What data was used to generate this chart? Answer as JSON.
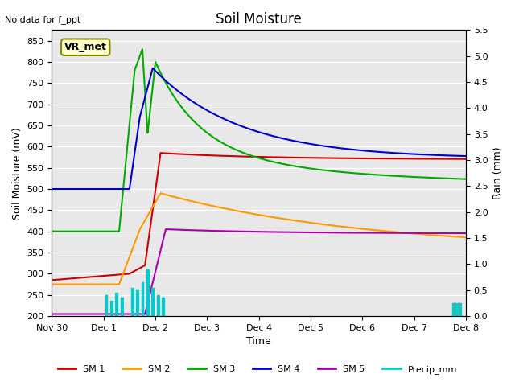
{
  "title": "Soil Moisture",
  "xlabel": "Time",
  "ylabel_left": "Soil Moisture (mV)",
  "ylabel_right": "Rain (mm)",
  "annotation": "No data for f_ppt",
  "label_box": "VR_met",
  "ylim_left": [
    200,
    875
  ],
  "ylim_right": [
    0.0,
    5.5
  ],
  "yticks_left": [
    200,
    250,
    300,
    350,
    400,
    450,
    500,
    550,
    600,
    650,
    700,
    750,
    800,
    850
  ],
  "yticks_right": [
    0.0,
    0.5,
    1.0,
    1.5,
    2.0,
    2.5,
    3.0,
    3.5,
    4.0,
    4.5,
    5.0,
    5.5
  ],
  "xtick_labels": [
    "Nov 30",
    "Dec 1",
    "Dec 2",
    "Dec 3",
    "Dec 4",
    "Dec 5",
    "Dec 6",
    "Dec 7",
    "Dec 8"
  ],
  "bg_color": "#e8e8e8",
  "fig_color": "#ffffff",
  "colors": {
    "SM1": "#cc0000",
    "SM2": "#ff9900",
    "SM3": "#00aa00",
    "SM4": "#0000cc",
    "SM5": "#aa00aa",
    "Precip": "#00cccc"
  },
  "legend_labels": [
    "SM 1",
    "SM 2",
    "SM 3",
    "SM 4",
    "SM 5",
    "Precip_mm"
  ]
}
